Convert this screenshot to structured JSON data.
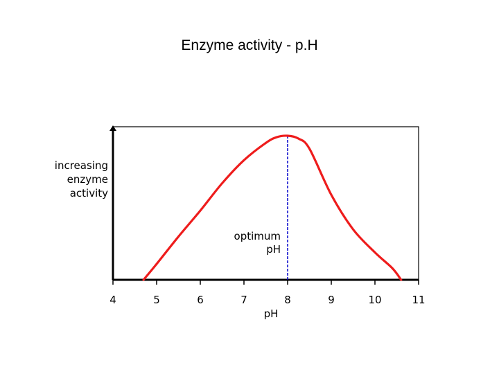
{
  "slide": {
    "title": "Enzyme activity - p.H"
  },
  "chart_data": {
    "type": "line",
    "title": "Enzyme activity - p.H",
    "xlabel": "pH",
    "ylabel_lines": [
      "increasing",
      "enzyme",
      "activity"
    ],
    "xlim": [
      4,
      11
    ],
    "ylim": [
      0,
      1
    ],
    "x_ticks": [
      4,
      5,
      6,
      7,
      8,
      9,
      10,
      11
    ],
    "x_tick_labels": [
      "4",
      "5",
      "6",
      "7",
      "8",
      "9",
      "10",
      "11"
    ],
    "grid": false,
    "legend": "none",
    "series": [
      {
        "color": "#ee1c1c",
        "x": [
          4.7,
          5.0,
          5.5,
          6.0,
          6.5,
          7.0,
          7.5,
          7.75,
          8.0,
          8.25,
          8.5,
          9.0,
          9.5,
          10.0,
          10.4,
          10.6
        ],
        "y": [
          0.0,
          0.11,
          0.3,
          0.48,
          0.67,
          0.83,
          0.95,
          0.99,
          1.0,
          0.98,
          0.91,
          0.59,
          0.35,
          0.19,
          0.08,
          0.0
        ]
      }
    ],
    "optimum": {
      "x": 8,
      "label_lines": [
        "optimum",
        "pH"
      ],
      "line_color": "#0000cc"
    }
  }
}
